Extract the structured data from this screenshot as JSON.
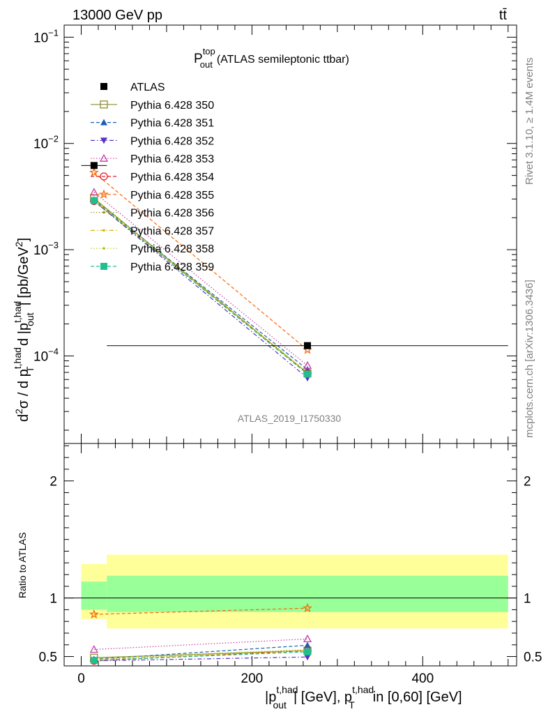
{
  "header": {
    "left": "13000 GeV pp",
    "right": "tt̄"
  },
  "side_labels": {
    "top": "Rivet 3.1.10, ≥ 1.4M events",
    "bottom": "mcplots.cern.ch [arXiv:1306.3436]"
  },
  "main_title": {
    "symbol": "P",
    "sup": "top",
    "sub": "out",
    "text": "(ATLAS semileptonic ttbar)"
  },
  "analysis_id": "ATLAS_2019_I1750330",
  "y_label_main": "d²σ / d p_T^{t,had} d |p_out^{t,had}| [pb/GeV²]",
  "y_label_ratio": "Ratio to ATLAS",
  "x_label": "|p_out^{t,had}| [GeV], p_T^{t,had} in [0,60] [GeV]",
  "legend_label_atlas": "ATLAS",
  "chart_data": {
    "type": "line",
    "x_axis": {
      "range": [
        -20,
        510
      ],
      "ticks": [
        0,
        200,
        400
      ]
    },
    "main": {
      "y_scale": "log",
      "y_range": [
        1.5e-05,
        0.13
      ],
      "y_ticks": [
        {
          "value": 0.0001,
          "mant": "10",
          "exp": "−4"
        },
        {
          "value": 0.001,
          "mant": "10",
          "exp": "−3"
        },
        {
          "value": 0.01,
          "mant": "10",
          "exp": "−2"
        },
        {
          "value": 0.1,
          "mant": "10",
          "exp": "−1"
        }
      ]
    },
    "ratio": {
      "y_scale": "linear",
      "y_range": [
        0.42,
        2.32
      ],
      "y_ticks": [
        {
          "value": 0.5,
          "label": "0.5"
        },
        {
          "value": 1,
          "label": "1"
        },
        {
          "value": 2,
          "label": "2"
        }
      ]
    },
    "data": {
      "name": "ATLAS",
      "x": [
        15,
        265
      ],
      "y": [
        0.0062,
        0.000125
      ],
      "bins": [
        [
          0,
          30
        ],
        [
          30,
          500
        ]
      ]
    },
    "bands": [
      {
        "x": [
          0,
          30
        ],
        "inner": [
          0.9,
          1.14
        ],
        "outer": [
          0.82,
          1.29
        ]
      },
      {
        "x": [
          30,
          500
        ],
        "inner": [
          0.88,
          1.19
        ],
        "outer": [
          0.74,
          1.37
        ]
      }
    ],
    "series": [
      {
        "name": "Pythia 6.428 350",
        "color": "#8c8c2c",
        "marker": "square-open",
        "dash": "solid",
        "y": [
          0.00304,
          6.88e-05
        ],
        "ratio": [
          0.49,
          0.55
        ]
      },
      {
        "name": "Pythia 6.428 351",
        "color": "#1a5fb4",
        "marker": "triangle-up",
        "dash": "dashed",
        "y": [
          0.00296,
          7.45e-05
        ],
        "ratio": [
          0.477,
          0.596
        ]
      },
      {
        "name": "Pythia 6.428 352",
        "color": "#5b2fc9",
        "marker": "triangle-down",
        "dash": "dashdot",
        "y": [
          0.00287,
          6.2e-05
        ],
        "ratio": [
          0.463,
          0.496
        ]
      },
      {
        "name": "Pythia 6.428 353",
        "color": "#c33ca5",
        "marker": "triangle-up-open",
        "dash": "dotted",
        "y": [
          0.00347,
          8.12e-05
        ],
        "ratio": [
          0.56,
          0.65
        ]
      },
      {
        "name": "Pythia 6.428 354",
        "color": "#e01b24",
        "marker": "circle-open",
        "dash": "dashed",
        "y": [
          0.00287,
          6.88e-05
        ],
        "ratio": [
          0.463,
          0.55
        ]
      },
      {
        "name": "Pythia 6.428 355",
        "color": "#f66a0a",
        "marker": "star-open",
        "dash": "dashed",
        "y": [
          0.00533,
          0.000114
        ],
        "ratio": [
          0.86,
          0.913
        ]
      },
      {
        "name": "Pythia 6.428 356",
        "color": "#9a9a28",
        "marker": "dot",
        "dash": "dotted",
        "y": [
          0.00298,
          6.94e-05
        ],
        "ratio": [
          0.48,
          0.555
        ]
      },
      {
        "name": "Pythia 6.428 357",
        "color": "#d6b70a",
        "marker": "dot",
        "dash": "dashdot",
        "y": [
          0.00292,
          6.88e-05
        ],
        "ratio": [
          0.471,
          0.55
        ]
      },
      {
        "name": "Pythia 6.428 358",
        "color": "#aacc22",
        "marker": "dot",
        "dash": "dotted",
        "y": [
          0.00301,
          7e-05
        ],
        "ratio": [
          0.485,
          0.56
        ]
      },
      {
        "name": "Pythia 6.428 359",
        "color": "#1fbf8f",
        "marker": "square",
        "dash": "dashed",
        "y": [
          0.0029,
          6.75e-05
        ],
        "ratio": [
          0.467,
          0.54
        ]
      }
    ]
  }
}
